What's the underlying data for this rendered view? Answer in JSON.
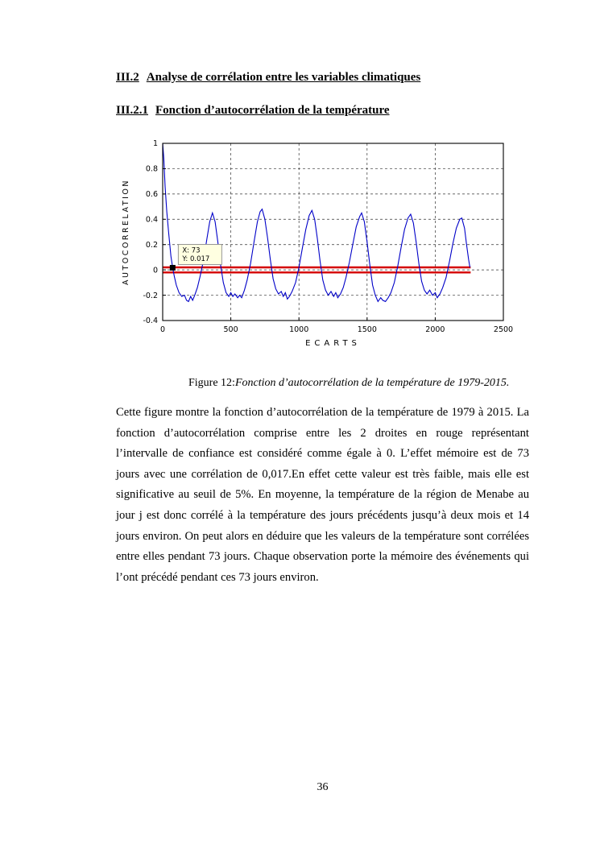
{
  "page": {
    "heading1": {
      "number": "III.2",
      "title": "Analyse de corrélation entre les variables climatiques"
    },
    "heading2": {
      "number": "III.2.1",
      "title": "Fonction d’autocorrélation de la température"
    },
    "caption": {
      "prefix": "Figure 12:",
      "text": "Fonction d’autocorrélation de la température  de 1979-2015."
    },
    "body": "Cette figure montre  la fonction d’autocorrélation  de la température de 1979 à 2015. La fonction d’autocorrélation comprise entre les 2 droites en rouge  représentant l’intervalle de confiance est considéré comme égale à 0. L’effet mémoire est de 73 jours avec une corrélation de 0,017.En effet cette valeur est très faible, mais elle est significative  au seuil de 5%. En moyenne, la température de la région de Menabe au jour j est donc corrélé à la température  des jours précédents jusqu’à deux  mois et 14 jours environ. On peut alors en déduire que les valeurs de la température sont corrélées entre elles pendant 73 jours. Chaque observation porte la mémoire des événements qui l’ont précédé pendant  ces 73 jours environ.",
    "page_number": "36"
  },
  "chart_data": {
    "type": "line",
    "title": "",
    "xlabel": "ECARTS",
    "ylabel": "AUTOCORRELATION",
    "xlim": [
      0,
      2500
    ],
    "ylim": [
      -0.4,
      1
    ],
    "xticks": [
      0,
      500,
      1000,
      1500,
      2000,
      2500
    ],
    "yticks": [
      -0.4,
      -0.2,
      0,
      0.2,
      0.4,
      0.6,
      0.8,
      1
    ],
    "grid": "dashed",
    "legend": "none",
    "series": [
      {
        "name": "autocorrelation",
        "color": "#0000C8",
        "points": [
          [
            0,
            1
          ],
          [
            8,
            0.88
          ],
          [
            18,
            0.66
          ],
          [
            30,
            0.46
          ],
          [
            45,
            0.28
          ],
          [
            60,
            0.11
          ],
          [
            73,
            0.017
          ],
          [
            85,
            -0.05
          ],
          [
            100,
            -0.12
          ],
          [
            120,
            -0.18
          ],
          [
            140,
            -0.21
          ],
          [
            160,
            -0.2
          ],
          [
            175,
            -0.24
          ],
          [
            190,
            -0.25
          ],
          [
            205,
            -0.21
          ],
          [
            220,
            -0.24
          ],
          [
            235,
            -0.2
          ],
          [
            255,
            -0.14
          ],
          [
            275,
            -0.05
          ],
          [
            300,
            0.08
          ],
          [
            325,
            0.25
          ],
          [
            345,
            0.38
          ],
          [
            365,
            0.45
          ],
          [
            385,
            0.38
          ],
          [
            405,
            0.22
          ],
          [
            425,
            0.04
          ],
          [
            445,
            -0.1
          ],
          [
            465,
            -0.18
          ],
          [
            485,
            -0.21
          ],
          [
            500,
            -0.18
          ],
          [
            515,
            -0.21
          ],
          [
            530,
            -0.19
          ],
          [
            550,
            -0.22
          ],
          [
            565,
            -0.2
          ],
          [
            580,
            -0.22
          ],
          [
            600,
            -0.16
          ],
          [
            620,
            -0.08
          ],
          [
            645,
            0.05
          ],
          [
            670,
            0.22
          ],
          [
            695,
            0.38
          ],
          [
            715,
            0.46
          ],
          [
            730,
            0.48
          ],
          [
            750,
            0.4
          ],
          [
            770,
            0.25
          ],
          [
            790,
            0.08
          ],
          [
            810,
            -0.07
          ],
          [
            830,
            -0.15
          ],
          [
            850,
            -0.19
          ],
          [
            870,
            -0.17
          ],
          [
            885,
            -0.21
          ],
          [
            900,
            -0.18
          ],
          [
            915,
            -0.23
          ],
          [
            930,
            -0.21
          ],
          [
            950,
            -0.17
          ],
          [
            975,
            -0.1
          ],
          [
            1000,
            0.02
          ],
          [
            1025,
            0.17
          ],
          [
            1050,
            0.32
          ],
          [
            1075,
            0.43
          ],
          [
            1095,
            0.47
          ],
          [
            1115,
            0.4
          ],
          [
            1135,
            0.25
          ],
          [
            1155,
            0.07
          ],
          [
            1175,
            -0.08
          ],
          [
            1195,
            -0.16
          ],
          [
            1215,
            -0.2
          ],
          [
            1235,
            -0.17
          ],
          [
            1255,
            -0.21
          ],
          [
            1270,
            -0.18
          ],
          [
            1285,
            -0.22
          ],
          [
            1305,
            -0.19
          ],
          [
            1325,
            -0.14
          ],
          [
            1345,
            -0.06
          ],
          [
            1370,
            0.06
          ],
          [
            1395,
            0.2
          ],
          [
            1420,
            0.34
          ],
          [
            1445,
            0.42
          ],
          [
            1460,
            0.45
          ],
          [
            1480,
            0.38
          ],
          [
            1500,
            0.22
          ],
          [
            1520,
            0.04
          ],
          [
            1540,
            -0.12
          ],
          [
            1560,
            -0.2
          ],
          [
            1580,
            -0.25
          ],
          [
            1600,
            -0.22
          ],
          [
            1615,
            -0.24
          ],
          [
            1635,
            -0.25
          ],
          [
            1655,
            -0.22
          ],
          [
            1675,
            -0.18
          ],
          [
            1700,
            -0.1
          ],
          [
            1725,
            0.03
          ],
          [
            1750,
            0.18
          ],
          [
            1775,
            0.32
          ],
          [
            1800,
            0.41
          ],
          [
            1820,
            0.44
          ],
          [
            1840,
            0.37
          ],
          [
            1860,
            0.22
          ],
          [
            1880,
            0.05
          ],
          [
            1900,
            -0.09
          ],
          [
            1920,
            -0.16
          ],
          [
            1940,
            -0.19
          ],
          [
            1960,
            -0.16
          ],
          [
            1980,
            -0.2
          ],
          [
            2000,
            -0.18
          ],
          [
            2015,
            -0.22
          ],
          [
            2035,
            -0.19
          ],
          [
            2055,
            -0.14
          ],
          [
            2080,
            -0.06
          ],
          [
            2105,
            0.07
          ],
          [
            2130,
            0.21
          ],
          [
            2155,
            0.33
          ],
          [
            2180,
            0.4
          ],
          [
            2195,
            0.41
          ],
          [
            2215,
            0.33
          ],
          [
            2230,
            0.2
          ],
          [
            2245,
            0.08
          ],
          [
            2255,
            0.02
          ]
        ]
      }
    ],
    "confidence_lines": {
      "color": "#D40000",
      "values": [
        0.02,
        -0.02
      ],
      "x_range": [
        0,
        2260
      ]
    },
    "datatip": {
      "x": 73,
      "y": 0.017,
      "lines": [
        "X: 73",
        "Y: 0.017"
      ],
      "marker_color": "#000000",
      "bg": "#FFFFE1"
    }
  }
}
